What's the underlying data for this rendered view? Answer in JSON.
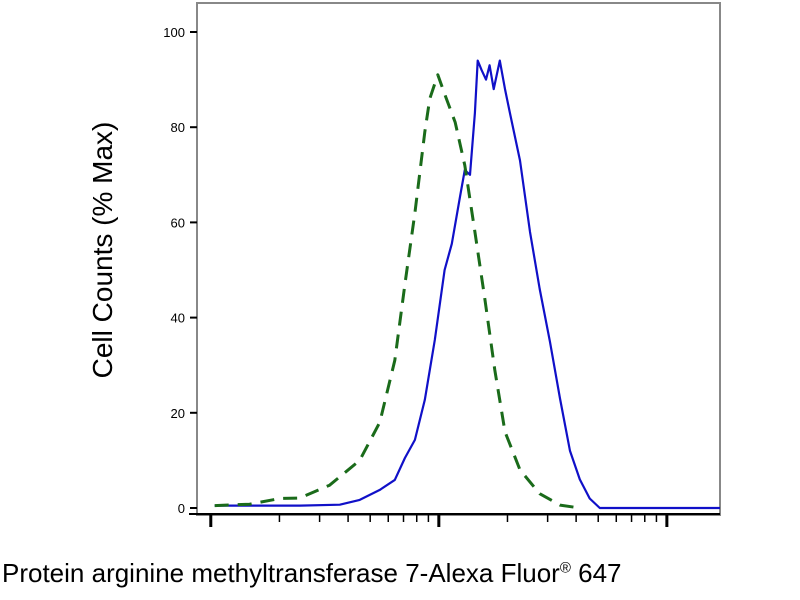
{
  "chart_data": {
    "type": "line",
    "title": "",
    "xlabel": "Protein arginine methyltransferase 7-Alexa Fluor",
    "xlabel_mark": "®",
    "xlabel_suffix": " 647",
    "ylabel": "Cell Counts (% Max)",
    "x_scale": "log",
    "x_tick_labels_shown": false,
    "xlim": [
      0.87,
      171
    ],
    "ylim": [
      0,
      105
    ],
    "yticks": [
      0,
      20,
      40,
      60,
      80,
      100
    ],
    "grid": false,
    "legend": "none",
    "series": [
      {
        "color": "#1010c8",
        "style": "solid",
        "x": [
          1.04,
          2.46,
          3.68,
          4.5,
          5.51,
          6.41,
          7.1,
          7.85,
          8.68,
          9.6,
          10.6,
          11.4,
          12.4,
          13.0,
          13.7,
          14.4,
          14.8,
          15.4,
          16.1,
          16.7,
          17.4,
          18.5,
          19.5,
          20.5,
          22.7,
          25.1,
          27.7,
          30.7,
          34.0,
          37.6,
          41.5,
          45.9,
          50.8,
          171
        ],
        "y": [
          0.5,
          0.5,
          0.7,
          1.7,
          3.8,
          5.9,
          10.5,
          14.3,
          22.7,
          35.3,
          50,
          55.5,
          65.5,
          71,
          70,
          83,
          94,
          92,
          90,
          93,
          88,
          94,
          88,
          83,
          73,
          58,
          46,
          35,
          23,
          12,
          6,
          2,
          0,
          0
        ]
      },
      {
        "color": "#1a6b1a",
        "style": "dashed",
        "x": [
          1.04,
          1.48,
          2.01,
          2.46,
          3.32,
          4.5,
          5.51,
          6.41,
          7.1,
          7.85,
          8.68,
          9.13,
          9.9,
          10.6,
          11.8,
          13.0,
          14.4,
          15.9,
          17.6,
          19.5,
          22.7,
          27.7,
          34.0,
          41.5
        ],
        "y": [
          0.5,
          0.8,
          2,
          2.1,
          4.8,
          10,
          18,
          31,
          47,
          62,
          79,
          86,
          91,
          87,
          81,
          72,
          58,
          44,
          29,
          16,
          8,
          3,
          0.6,
          0
        ]
      }
    ]
  }
}
